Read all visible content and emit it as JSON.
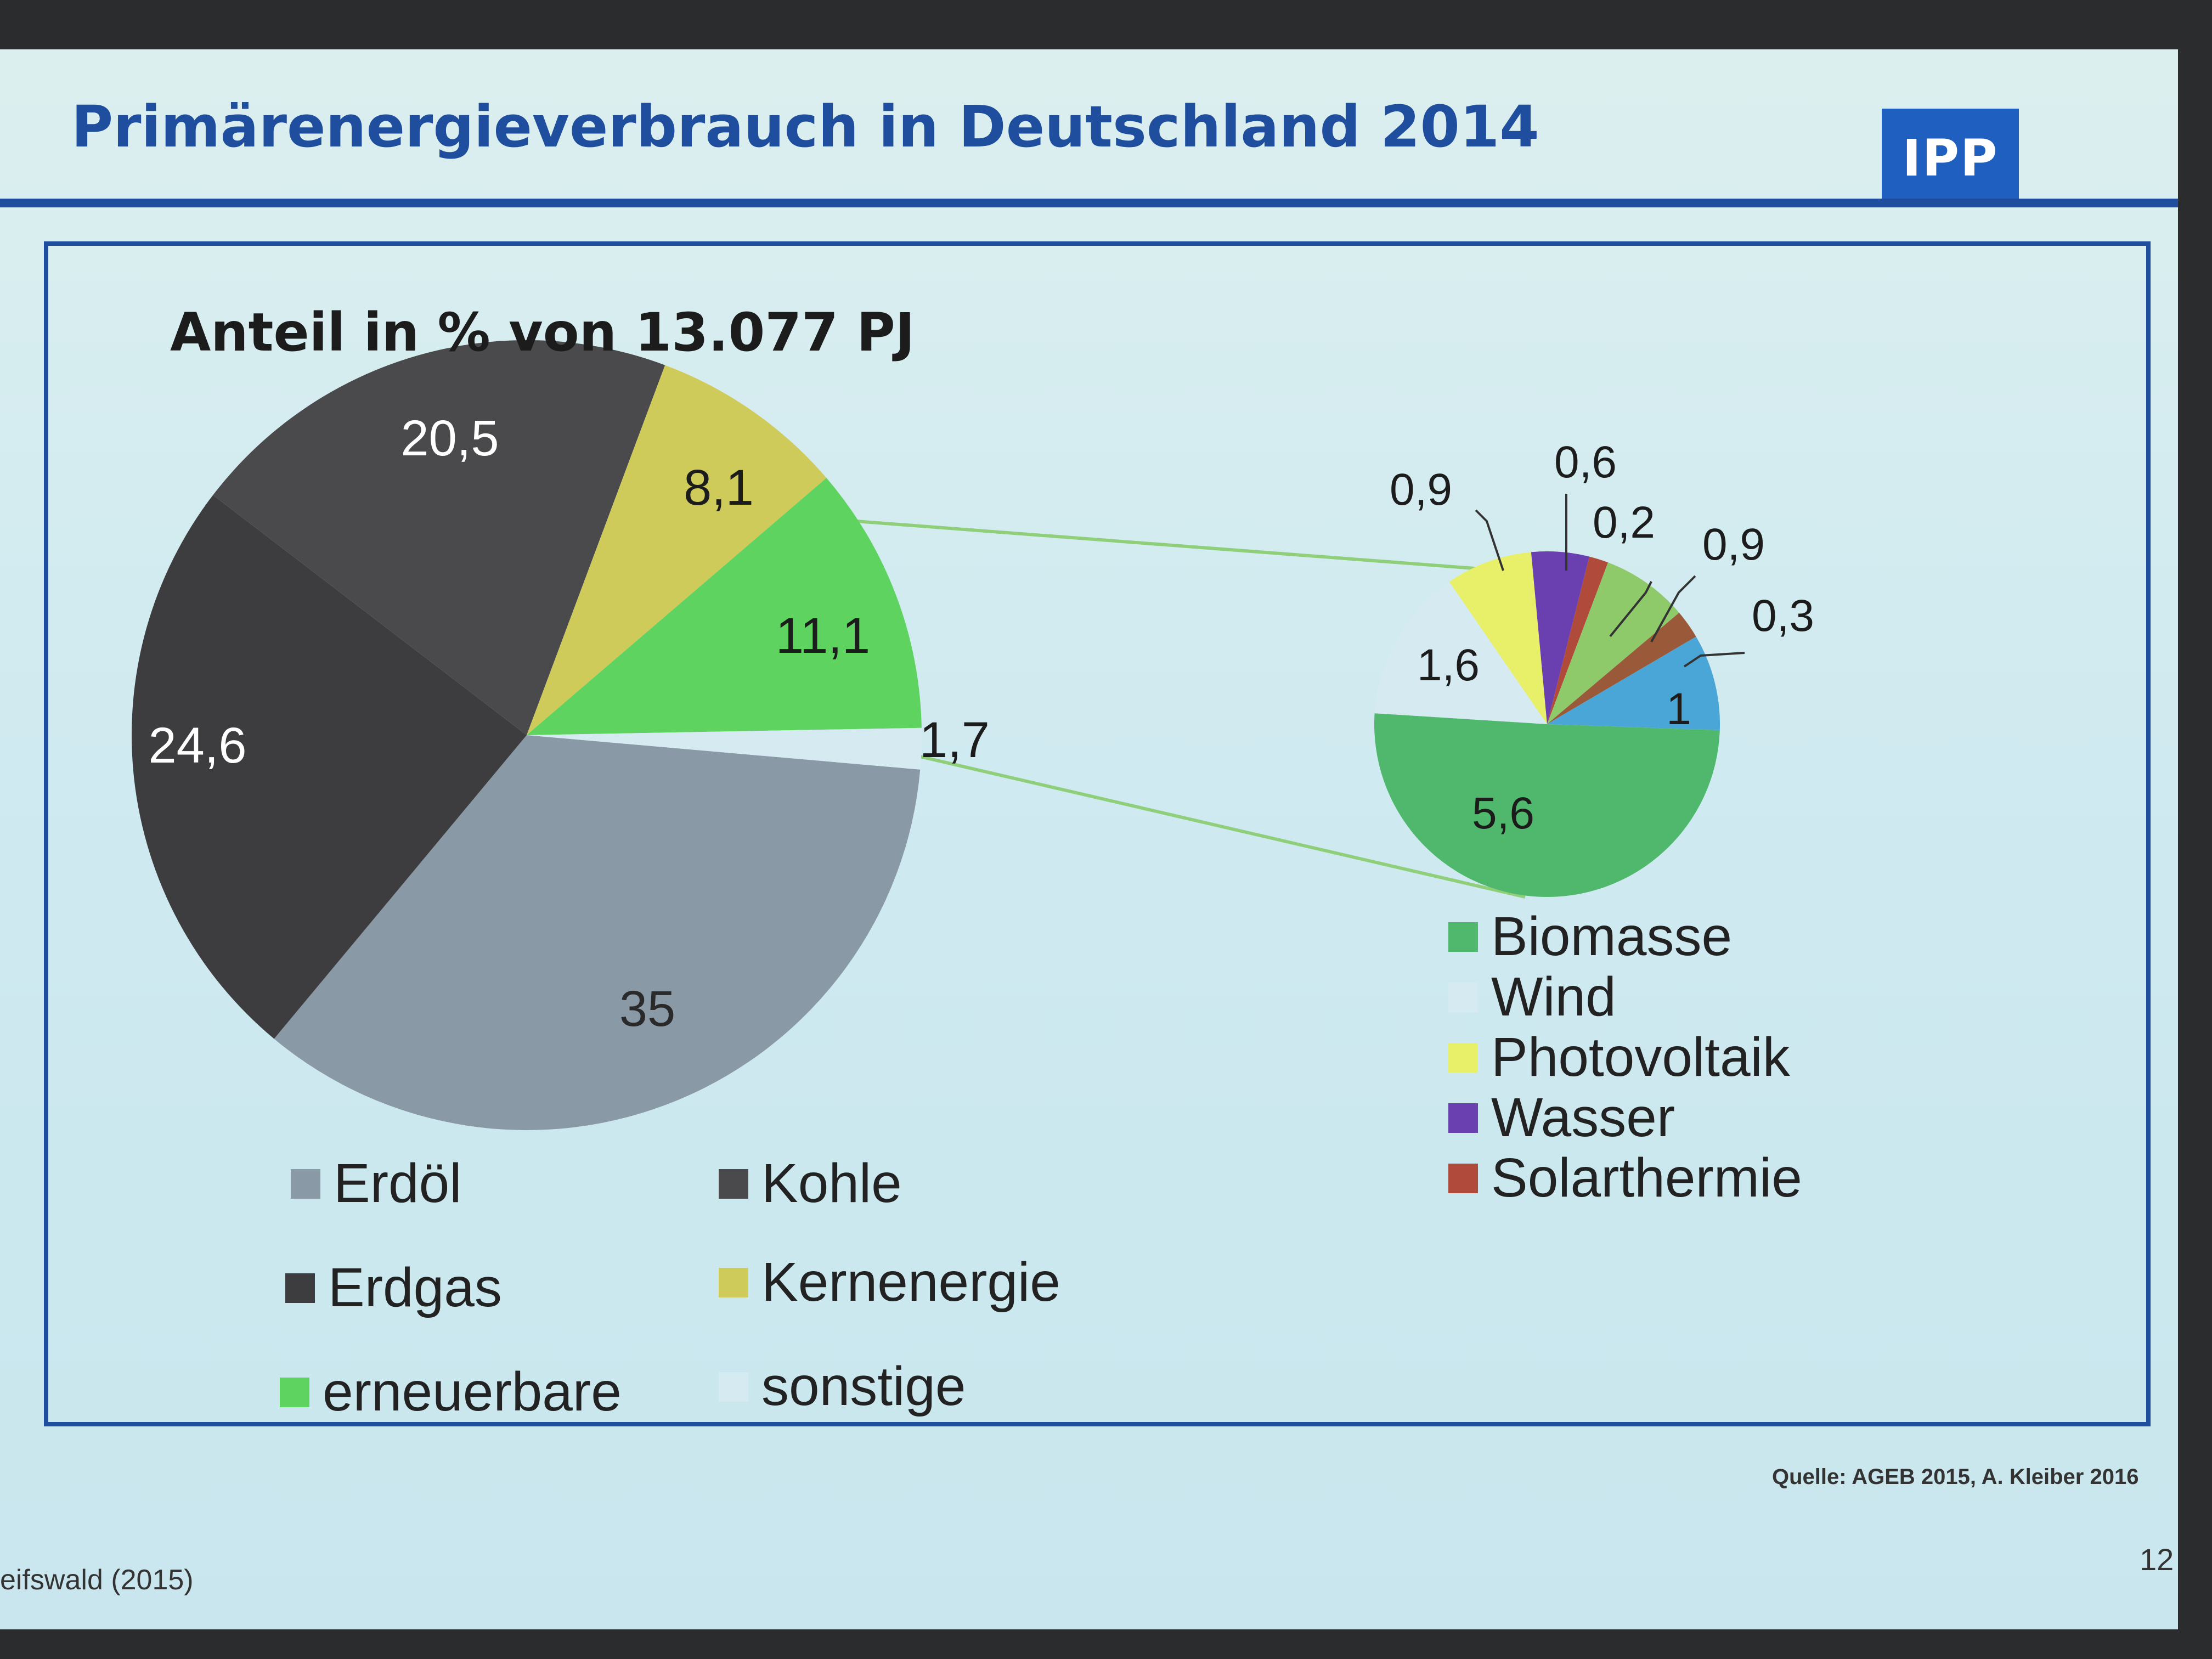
{
  "slide": {
    "title": "Primärenergieverbrauch in Deutschland 2014",
    "logo": "IPP",
    "source": "Quelle: AGEB 2015, A. Kleiber 2016",
    "footer_left": "eifswald (2015)",
    "page_number": "12"
  },
  "chart_data": [
    {
      "type": "pie",
      "title": "Anteil in % von 13.077 PJ",
      "slices": [
        {
          "name": "Erdöl",
          "value": 35,
          "label": "35",
          "color": "#8a99a6"
        },
        {
          "name": "Erdgas",
          "value": 24.6,
          "label": "24,6",
          "color": "#3d3d3f"
        },
        {
          "name": "Kohle",
          "value": 20.5,
          "label": "20,5",
          "color": "#4a4a4c"
        },
        {
          "name": "Kernenergie",
          "value": 8.1,
          "label": "8,1",
          "color": "#cfcb5a"
        },
        {
          "name": "erneuerbare",
          "value": 11.1,
          "label": "11,1",
          "color": "#5fd35f"
        },
        {
          "name": "sonstige",
          "value": 1.7,
          "label": "1,7",
          "color": "#d6eaf2"
        }
      ],
      "legend": [
        "Erdöl",
        "Kohle",
        "Erdgas",
        "Kernenergie",
        "erneuerbare",
        "sonstige"
      ],
      "legend_position": "bottom"
    },
    {
      "type": "pie",
      "title": "",
      "slices": [
        {
          "name": "Biomasse",
          "value": 5.6,
          "label": "5,6",
          "color": "#50b86c"
        },
        {
          "name": "Wind",
          "value": 1.6,
          "label": "1,6",
          "color": "#d6eaf2"
        },
        {
          "name": "Photovoltaik",
          "value": 0.9,
          "label": "0,9",
          "color": "#e8f06a"
        },
        {
          "name": "Wasser",
          "value": 0.6,
          "label": "0,6",
          "color": "#6a3fb0"
        },
        {
          "name": "Solarthermie",
          "value": 0.2,
          "label": "0,2",
          "color": "#b04a3a"
        },
        {
          "name": "",
          "value": 0.9,
          "label": "0,9",
          "color": "#8ec96a"
        },
        {
          "name": "",
          "value": 0.3,
          "label": "0,3",
          "color": "#9a5a3a"
        },
        {
          "name": "",
          "value": 1,
          "label": "1",
          "color": "#4aa6d6"
        }
      ],
      "legend": [
        "Biomasse",
        "Wind",
        "Photovoltaik",
        "Wasser",
        "Solarthermie"
      ],
      "legend_position": "right-bottom"
    }
  ]
}
